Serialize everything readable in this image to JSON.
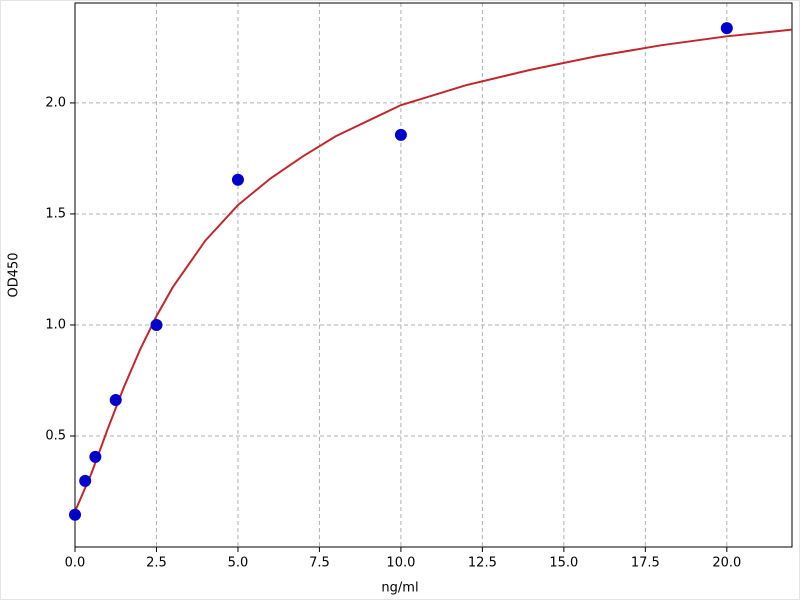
{
  "chart_data": {
    "type": "scatter",
    "x_label": "ng/ml",
    "y_label": "OD450",
    "xlim": [
      0,
      22
    ],
    "ylim": [
      0,
      2.45
    ],
    "xticks": [
      {
        "value": 0,
        "label": "0.0"
      },
      {
        "value": 2.5,
        "label": "2.5"
      },
      {
        "value": 5,
        "label": "5.0"
      },
      {
        "value": 7.5,
        "label": "7.5"
      },
      {
        "value": 10,
        "label": "10.0"
      },
      {
        "value": 12.5,
        "label": "12.5"
      },
      {
        "value": 15,
        "label": "15.0"
      },
      {
        "value": 17.5,
        "label": "17.5"
      },
      {
        "value": 20,
        "label": "20.0"
      }
    ],
    "yticks": [
      0.5,
      {
        "value": 1,
        "label": "1.0"
      },
      1.5,
      {
        "value": 2,
        "label": "2.0"
      }
    ],
    "grid": true,
    "series": [
      {
        "type": "line",
        "color": "#c0282d",
        "x": [
          0,
          0.5,
          1,
          1.5,
          2,
          2.5,
          3,
          4,
          5,
          6,
          7,
          8,
          10,
          12,
          14,
          16,
          18,
          20,
          22
        ],
        "values": [
          0.16,
          0.33,
          0.53,
          0.72,
          0.89,
          1.04,
          1.17,
          1.38,
          1.54,
          1.66,
          1.76,
          1.85,
          1.99,
          2.08,
          2.15,
          2.21,
          2.26,
          2.3,
          2.33
        ]
      },
      {
        "type": "scatter",
        "color": "#0000cc",
        "x": [
          0,
          0.3125,
          0.625,
          1.25,
          2.5,
          5,
          10,
          20
        ],
        "values": [
          0.145,
          0.298,
          0.406,
          0.662,
          1.0,
          1.654,
          1.856,
          2.337
        ]
      }
    ]
  }
}
